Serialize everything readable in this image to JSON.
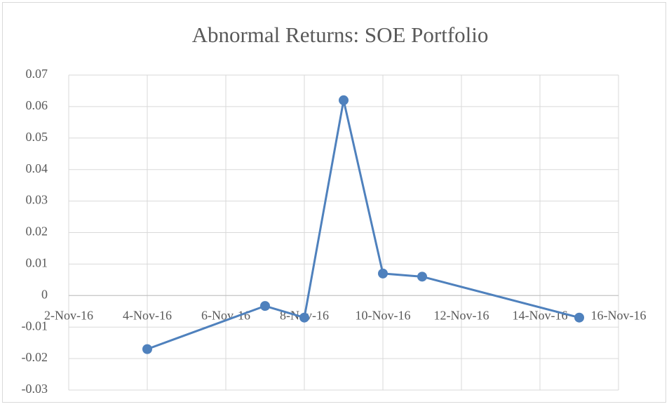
{
  "chart_data": {
    "type": "line",
    "title": "Abnormal Returns: SOE Portfolio",
    "x": [
      "2016-11-04",
      "2016-11-07",
      "2016-11-08",
      "2016-11-09",
      "2016-11-10",
      "2016-11-11",
      "2016-11-15"
    ],
    "series": [
      {
        "name": "SOE Portfolio",
        "color": "#4f81bd",
        "values": [
          -0.017,
          -0.0033,
          -0.007,
          0.062,
          0.007,
          0.006,
          -0.007
        ]
      }
    ],
    "xlim": [
      "2016-11-02",
      "2016-11-16"
    ],
    "xticks": [
      {
        "value": "2016-11-02",
        "label": "2-Nov-16"
      },
      {
        "value": "2016-11-04",
        "label": "4-Nov-16"
      },
      {
        "value": "2016-11-06",
        "label": "6-Nov-16"
      },
      {
        "value": "2016-11-08",
        "label": "8-Nov-16"
      },
      {
        "value": "2016-11-10",
        "label": "10-Nov-16"
      },
      {
        "value": "2016-11-12",
        "label": "12-Nov-16"
      },
      {
        "value": "2016-11-14",
        "label": "14-Nov-16"
      },
      {
        "value": "2016-11-16",
        "label": "16-Nov-16"
      }
    ],
    "ylim": [
      -0.03,
      0.07
    ],
    "yticks": [
      -0.03,
      -0.02,
      -0.01,
      0,
      0.01,
      0.02,
      0.03,
      0.04,
      0.05,
      0.06,
      0.07
    ],
    "grid": true
  }
}
